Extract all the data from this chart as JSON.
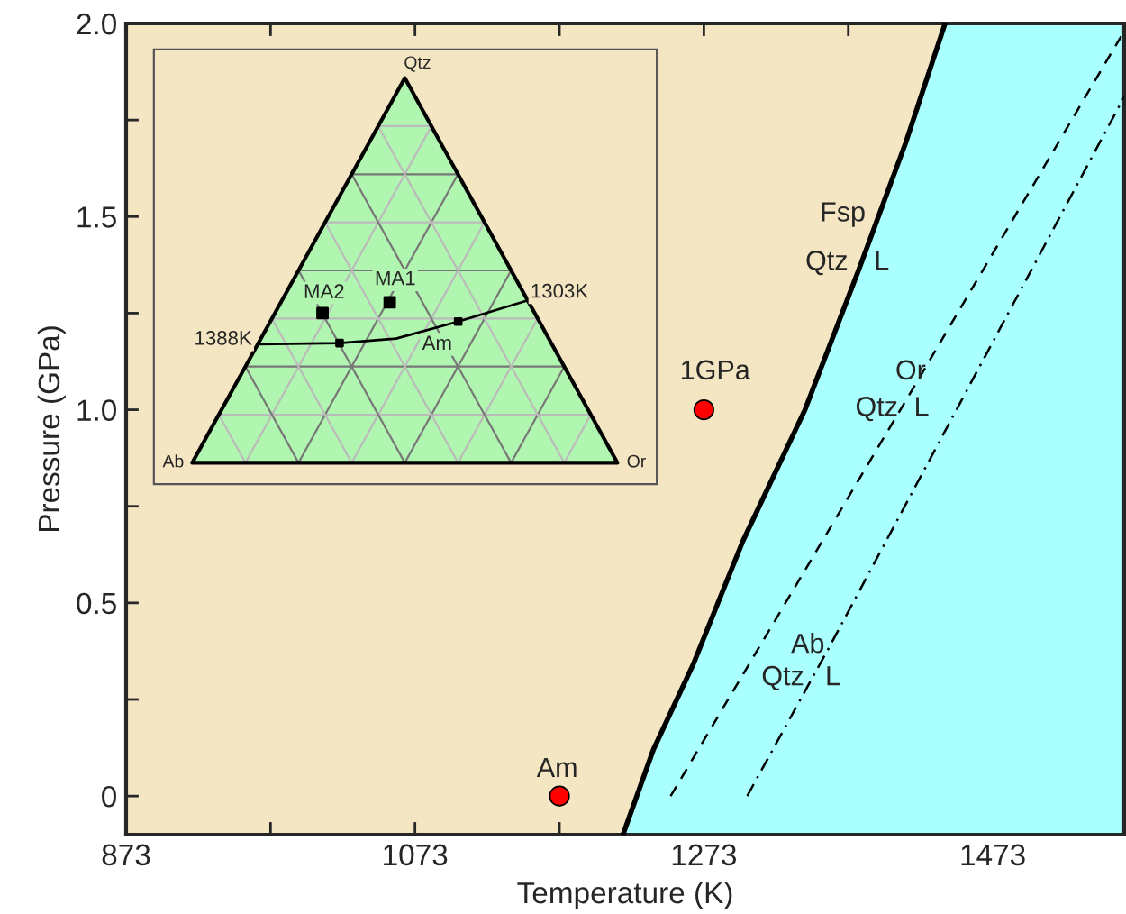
{
  "chart_data": [
    {
      "type": "line",
      "xlabel": "Temperature (K)",
      "ylabel": "Pressure (GPa)",
      "xlim": [
        873,
        1564
      ],
      "ylim": [
        -0.1,
        2.0
      ],
      "xticks": [
        873,
        {
          "value": 973,
          "label": null
        },
        1073,
        {
          "value": 1173,
          "label": null
        },
        1273,
        {
          "value": 1373,
          "label": null
        },
        1473
      ],
      "yticks": [
        0,
        {
          "value": 0.25,
          "label": null
        },
        0.5,
        {
          "value": 0.75,
          "label": null
        },
        {
          "value": 1.0,
          "label": "1.0"
        },
        {
          "value": 1.25,
          "label": null
        },
        1.5,
        {
          "value": 1.75,
          "label": null
        },
        {
          "value": 2.0,
          "label": "2.0"
        }
      ],
      "grid": false,
      "legend": false,
      "series": [
        {
          "color": "#000000",
          "x": [
            1217,
            1238,
            1265.5,
            1300,
            1343,
            1380,
            1412.6,
            1440
          ],
          "values": [
            -0.1,
            0.12,
            0.34,
            0.66,
            1.0,
            1.36,
            1.69,
            2.0
          ]
        },
        {
          "color": "#000000",
          "line_style": "dashed",
          "x": [
            1250,
            1417,
            1564
          ],
          "values": [
            0,
            1.05,
            1.98
          ]
        },
        {
          "color": "#000000",
          "line_style": "dashdot",
          "x": [
            1303,
            1359,
            1564
          ],
          "values": [
            0,
            0.38,
            1.81
          ]
        },
        {
          "type": "scatter",
          "color": "#ff0000",
          "marker": "circle",
          "x": [
            1173,
            1273
          ],
          "values": [
            0,
            1.0
          ]
        }
      ],
      "annotations": [
        "Fsp",
        "Qtz",
        "L",
        "Or",
        "Qtz",
        "L",
        "Ab",
        "Qtz",
        "L",
        "1GPa",
        "Am"
      ]
    },
    {
      "type": "other",
      "annotations": [
        "Qtz",
        "Ab",
        "Or",
        "MA1",
        "MA2",
        "1388K",
        "1303K",
        "Am"
      ]
    }
  ]
}
